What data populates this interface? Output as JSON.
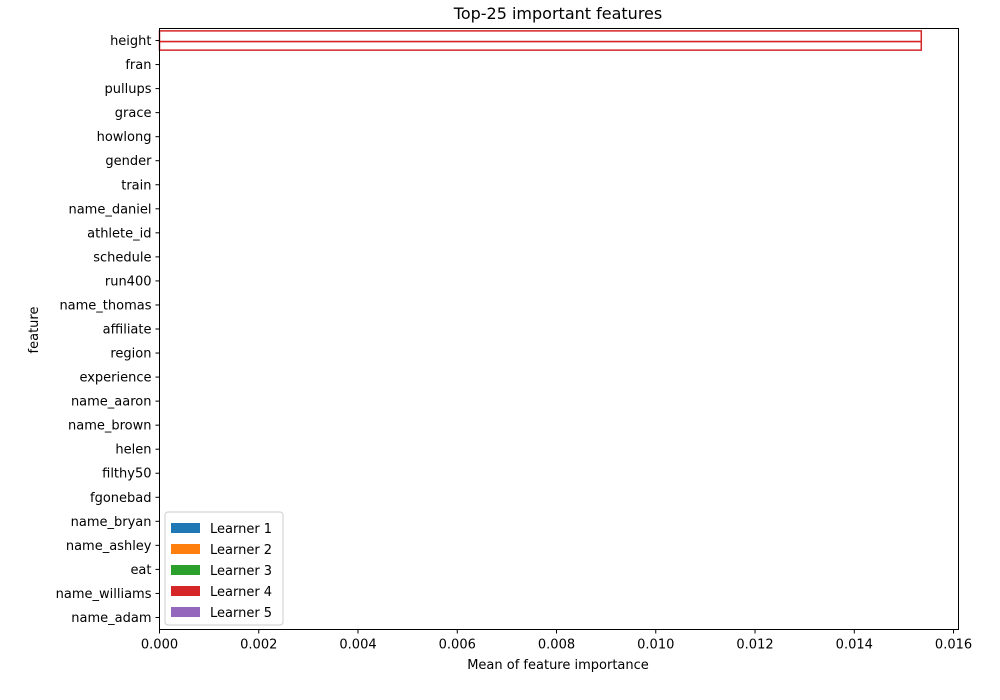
{
  "chart_data": {
    "type": "bar",
    "orientation": "horizontal",
    "title": "Top-25 important features",
    "xlabel": "Mean of feature importance",
    "ylabel": "feature",
    "xlim": [
      0,
      0.0161
    ],
    "xticks": [
      0.0,
      0.002,
      0.004,
      0.006,
      0.008,
      0.01,
      0.012,
      0.014,
      0.016
    ],
    "xtick_labels": [
      "0.000",
      "0.002",
      "0.004",
      "0.006",
      "0.008",
      "0.010",
      "0.012",
      "0.014",
      "0.016"
    ],
    "categories": [
      "height",
      "fran",
      "pullups",
      "grace",
      "howlong",
      "gender",
      "train",
      "name_daniel",
      "athlete_id",
      "schedule",
      "run400",
      "name_thomas",
      "affiliate",
      "region",
      "experience",
      "name_aaron",
      "name_brown",
      "helen",
      "filthy50",
      "fgonebad",
      "name_bryan",
      "name_ashley",
      "eat",
      "name_williams",
      "name_adam"
    ],
    "series": [
      {
        "name": "Learner 1",
        "color": "#1f77b4",
        "values": [
          0,
          0,
          0,
          0,
          0,
          0,
          0,
          0,
          0,
          0,
          0,
          0,
          0,
          0,
          0,
          0,
          0,
          0,
          0,
          0,
          0,
          0,
          0,
          0,
          0
        ]
      },
      {
        "name": "Learner 2",
        "color": "#ff7f0e",
        "values": [
          0,
          0,
          0,
          0,
          0,
          0,
          0,
          0,
          0,
          0,
          0,
          0,
          0,
          0,
          0,
          0,
          0,
          0,
          0,
          0,
          0,
          0,
          0,
          0,
          0
        ]
      },
      {
        "name": "Learner 3",
        "color": "#2ca02c",
        "values": [
          0,
          0,
          0,
          0,
          0,
          0,
          0,
          0,
          0,
          0,
          0,
          0,
          0,
          0,
          0,
          0,
          0,
          0,
          0,
          0,
          0,
          0,
          0,
          0,
          0
        ]
      },
      {
        "name": "Learner 4",
        "color": "#d62728",
        "values": [
          0.01535,
          0,
          0,
          0,
          0,
          0,
          0,
          0,
          0,
          0,
          0,
          0,
          0,
          0,
          0,
          0,
          0,
          0,
          0,
          0,
          0,
          0,
          0,
          0,
          0
        ]
      },
      {
        "name": "Learner 5",
        "color": "#9467bd",
        "values": [
          0,
          0,
          0,
          0,
          0,
          0,
          0,
          0,
          0,
          0,
          0,
          0,
          0,
          0,
          0,
          0,
          0,
          0,
          0,
          0,
          0,
          0,
          0,
          0,
          0
        ]
      }
    ],
    "legend": "lower-left",
    "grid": false
  }
}
